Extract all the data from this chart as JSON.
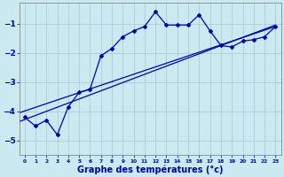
{
  "xlabel": "Graphe des températures (°c)",
  "background_color": "#cbe9f0",
  "grid_color": "#aaccd8",
  "line_color": "#0000aa",
  "x_hours": [
    0,
    1,
    2,
    3,
    4,
    5,
    6,
    7,
    8,
    9,
    10,
    11,
    12,
    13,
    14,
    15,
    16,
    17,
    18,
    19,
    20,
    21,
    22,
    23
  ],
  "temp_line": [
    -4.2,
    -4.5,
    -4.3,
    -4.8,
    -3.85,
    -3.35,
    -3.25,
    -2.1,
    -1.85,
    -1.45,
    -1.25,
    -1.1,
    -0.6,
    -1.05,
    -1.05,
    -1.05,
    -0.7,
    -1.25,
    -1.75,
    -1.8,
    -1.6,
    -1.55,
    -1.45,
    -1.1
  ],
  "reg_line1": [
    [
      -0.5,
      -4.35
    ],
    [
      23,
      -1.05
    ]
  ],
  "reg_line2": [
    [
      -0.5,
      -4.05
    ],
    [
      23,
      -1.1
    ]
  ],
  "ylim": [
    -5.5,
    -0.3
  ],
  "yticks": [
    -5,
    -4,
    -3,
    -2,
    -1
  ],
  "xlim": [
    -0.5,
    23.5
  ]
}
